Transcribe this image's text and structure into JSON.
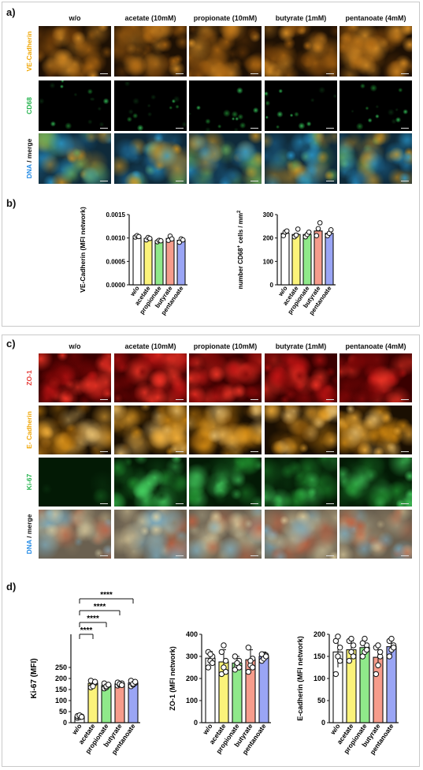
{
  "panels": {
    "a": {
      "letter": "a)",
      "columns": [
        "w/o",
        "acetate (10mM)",
        "propionate (10mM)",
        "butyrate (1mM)",
        "pentanoate (4mM)"
      ],
      "rows": [
        {
          "label_parts": [
            {
              "text": "VE-Cadherin",
              "color": "#f0a500"
            }
          ]
        },
        {
          "label_parts": [
            {
              "text": "CD68",
              "color": "#22b24c"
            }
          ]
        },
        {
          "label_parts": [
            {
              "text": "DNA",
              "color": "#1e88e5"
            },
            {
              "text": " / merge",
              "color": "#111111"
            }
          ]
        }
      ]
    },
    "b": {
      "letter": "b)"
    },
    "c": {
      "letter": "c)",
      "columns": [
        "w/o",
        "acetate (10mM)",
        "propionate (10mM)",
        "butyrate (1mM)",
        "pentanoate (4mM)"
      ],
      "rows": [
        {
          "label_parts": [
            {
              "text": "ZO-1",
              "color": "#e53935"
            }
          ]
        },
        {
          "label_parts": [
            {
              "text": "E- Cadherin",
              "color": "#f0a500"
            }
          ]
        },
        {
          "label_parts": [
            {
              "text": "Ki-67",
              "color": "#22b24c"
            }
          ]
        },
        {
          "label_parts": [
            {
              "text": "DNA",
              "color": "#1e88e5"
            },
            {
              "text": " / merge",
              "color": "#111111"
            }
          ]
        }
      ]
    },
    "d": {
      "letter": "d)"
    }
  },
  "colors": {
    "wo": "#ffffff",
    "acetate": "#fbf37a",
    "propionate": "#8fe98a",
    "butyrate": "#f69c8c",
    "pentanoate": "#9aa5f5"
  },
  "chart_data": [
    {
      "type": "bar",
      "panel": "b",
      "categories": [
        "w/o",
        "acetate",
        "propionate",
        "butyrate",
        "pentanoate"
      ],
      "values": [
        0.00104,
        0.00099,
        0.00094,
        0.00099,
        0.00095
      ],
      "points": [
        [
          0.00102,
          0.00105,
          0.00103
        ],
        [
          0.00096,
          0.00101,
          0.00099
        ],
        [
          0.00092,
          0.00095,
          0.00094
        ],
        [
          0.00095,
          0.00104,
          0.00098
        ],
        [
          0.00091,
          0.00098,
          0.00096
        ]
      ],
      "ylabel": "VE-Cadherin (MFI network)",
      "ylim": [
        0,
        0.0015
      ],
      "yticks": [
        "0.0000",
        "0.0005",
        "0.0010",
        "0.0015"
      ]
    },
    {
      "type": "bar",
      "panel": "b",
      "categories": [
        "w/o",
        "acetate",
        "propionate",
        "butyrate",
        "pentanoate"
      ],
      "values": [
        220,
        215,
        215,
        230,
        220
      ],
      "points": [
        [
          210,
          225,
          230
        ],
        [
          205,
          212,
          238
        ],
        [
          205,
          215,
          225
        ],
        [
          210,
          240,
          265
        ],
        [
          210,
          220,
          235
        ]
      ],
      "ylabel": "number CD68+ cells / mm2",
      "ylabel_main": "number CD68",
      "ylabel_sup": "+",
      "ylabel_rest": " cells / mm",
      "ylabel_sup2": "2",
      "ylim": [
        0,
        300
      ],
      "yticks": [
        "0",
        "100",
        "200",
        "300"
      ]
    },
    {
      "type": "bar",
      "panel": "d",
      "categories": [
        "w/o",
        "acetate",
        "propionate",
        "butyrate",
        "pentanoate"
      ],
      "values": [
        27,
        178,
        168,
        176,
        180
      ],
      "errors": [
        4,
        17,
        12,
        8,
        13
      ],
      "points": [
        [
          22,
          25,
          28,
          30,
          33,
          26
        ],
        [
          160,
          170,
          180,
          190,
          165,
          185
        ],
        [
          155,
          160,
          170,
          178,
          165,
          172
        ],
        [
          168,
          172,
          178,
          182,
          175,
          170
        ],
        [
          165,
          172,
          180,
          190,
          176,
          185
        ]
      ],
      "ylabel": "Ki-67 (MFI)",
      "ylim": [
        0,
        400
      ],
      "yticks": [
        "0",
        "50",
        "100",
        "150",
        "200",
        "250"
      ],
      "significance": [
        "****",
        "****",
        "****",
        "****"
      ]
    },
    {
      "type": "bar",
      "panel": "d",
      "categories": [
        "w/o",
        "acetate",
        "propionate",
        "butyrate",
        "pentanoate"
      ],
      "values": [
        292,
        275,
        270,
        285,
        300
      ],
      "errors": [
        30,
        55,
        30,
        45,
        20
      ],
      "points": [
        [
          250,
          280,
          300,
          320,
          310,
          270
        ],
        [
          220,
          250,
          280,
          320,
          350,
          230
        ],
        [
          240,
          260,
          280,
          300,
          270,
          250
        ],
        [
          230,
          260,
          290,
          340,
          280,
          250
        ],
        [
          280,
          295,
          305,
          310,
          290,
          300
        ]
      ],
      "ylabel": "ZO-1 (MFI network)",
      "ylim": [
        0,
        400
      ],
      "yticks": [
        "0",
        "100",
        "200",
        "300",
        "400"
      ]
    },
    {
      "type": "bar",
      "panel": "d",
      "categories": [
        "w/o",
        "acetate",
        "propionate",
        "butyrate",
        "pentanoate"
      ],
      "values": [
        160,
        165,
        170,
        148,
        172
      ],
      "errors": [
        35,
        20,
        20,
        25,
        18
      ],
      "points": [
        [
          110,
          150,
          170,
          185,
          195,
          140
        ],
        [
          140,
          160,
          175,
          185,
          190,
          150
        ],
        [
          150,
          160,
          175,
          180,
          190,
          165
        ],
        [
          110,
          130,
          150,
          170,
          175,
          160
        ],
        [
          150,
          165,
          175,
          185,
          190,
          170
        ]
      ],
      "ylabel": "E-cadherin (MFI network)",
      "ylim": [
        0,
        200
      ],
      "yticks": [
        "0",
        "50",
        "100",
        "150",
        "200"
      ]
    }
  ]
}
